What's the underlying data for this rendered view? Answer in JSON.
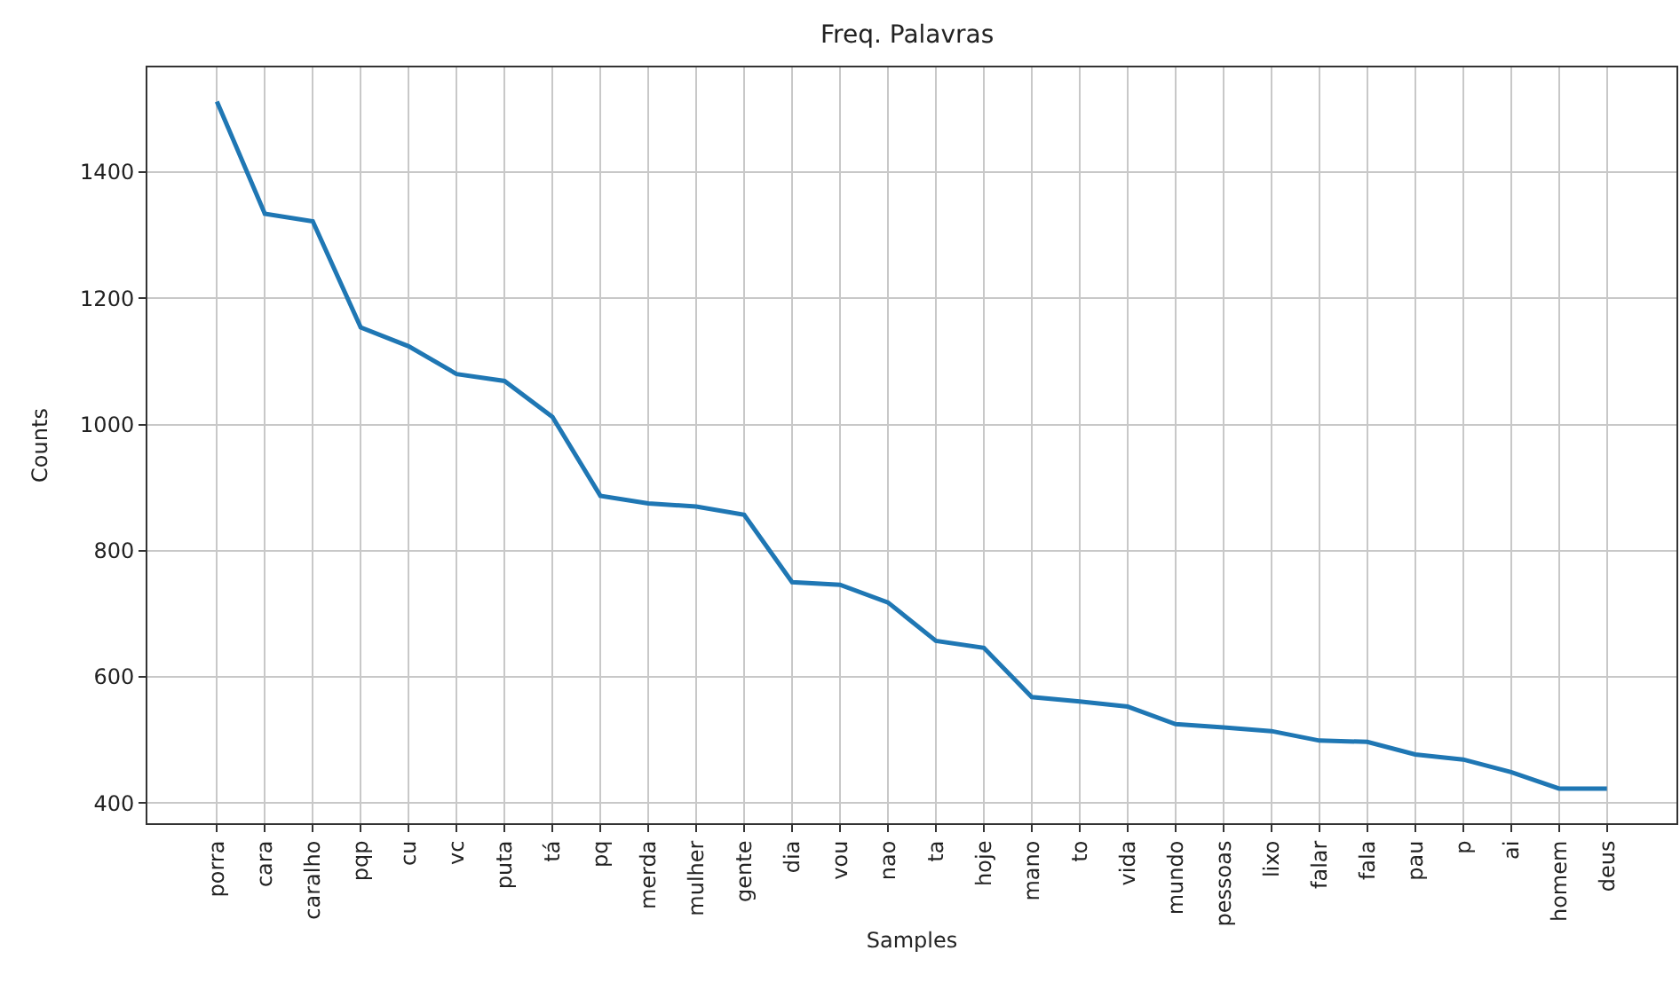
{
  "chart_data": {
    "type": "line",
    "title": "Freq. Palavras",
    "xlabel": "Samples",
    "ylabel": "Counts",
    "categories": [
      "porra",
      "cara",
      "caralho",
      "pqp",
      "cu",
      "vc",
      "puta",
      "tá",
      "pq",
      "merda",
      "mulher",
      "gente",
      "dia",
      "vou",
      "nao",
      "ta",
      "hoje",
      "mano",
      "to",
      "vida",
      "mundo",
      "pessoas",
      "lixo",
      "falar",
      "fala",
      "pau",
      "p",
      "ai",
      "homem",
      "deus"
    ],
    "series": [
      {
        "color": "#1f77b4",
        "values": [
          1512,
          1334,
          1322,
          1154,
          1124,
          1080,
          1069,
          1012,
          887,
          875,
          870,
          857,
          750,
          746,
          718,
          657,
          646,
          568,
          561,
          553,
          525,
          520,
          514,
          499,
          497,
          477,
          469,
          449,
          423,
          423
        ]
      }
    ],
    "ylim": [
      368,
      1566
    ],
    "yticks": [
      400,
      600,
      800,
      1000,
      1200,
      1400
    ],
    "grid": true,
    "marker": "none",
    "line_style": "solid"
  }
}
